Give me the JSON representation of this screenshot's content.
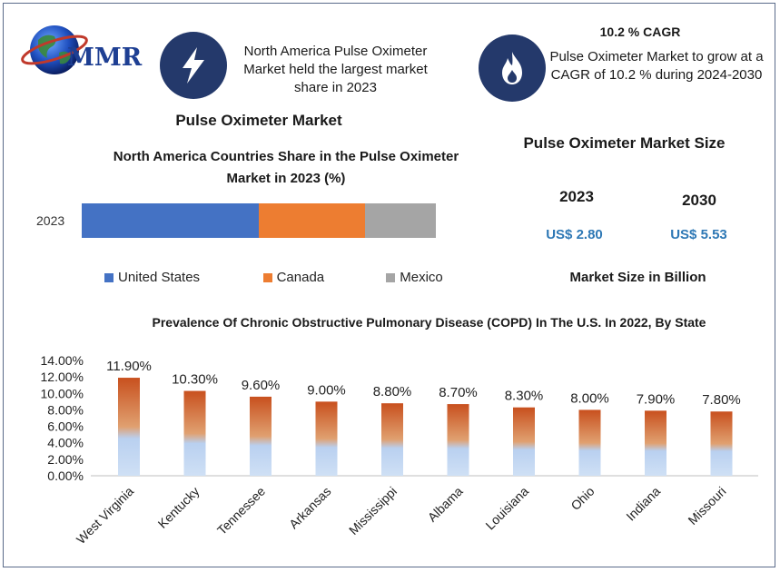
{
  "brand": {
    "logo_text": "MMR"
  },
  "header": {
    "note_left": "North America Pulse Oximeter Market held the largest market share in 2023",
    "cagr_title": "10.2 % CAGR",
    "cagr_text": "Pulse Oximeter Market to grow at a CAGR of 10.2 % during 2024-2030",
    "left_icon": "lightning-bolt-icon",
    "right_icon": "flame-icon"
  },
  "market_title": "Pulse Oximeter Market",
  "colors": {
    "icon_circle": "#24396b",
    "us": "#4472c4",
    "canada": "#ed7d31",
    "mexico": "#a5a5a5",
    "value_text": "#2e78b5",
    "bar_top": "#c8501e",
    "bar_bottom": "#cfe0f5"
  },
  "market_size": {
    "title": "Pulse Oximeter Market Size",
    "year_1": "2023",
    "value_1": "US$ 2.80",
    "year_2": "2030",
    "value_2": "US$ 5.53",
    "footnote": "Market Size in Billion"
  },
  "chart_data": [
    {
      "type": "bar",
      "orientation": "horizontal-stacked",
      "title": "North America Countries Share in the Pulse Oximeter Market in 2023 (%)",
      "categories": [
        "2023"
      ],
      "series": [
        {
          "name": "United States",
          "values": [
            50
          ]
        },
        {
          "name": "Canada",
          "values": [
            30
          ]
        },
        {
          "name": "Mexico",
          "values": [
            20
          ]
        }
      ],
      "legend": "bottom",
      "grid": false
    },
    {
      "type": "bar",
      "title": "Prevalence Of Chronic Obstructive Pulmonary Disease (COPD) In The U.S. In 2022, By State",
      "categories": [
        "West Virginia",
        "Kentucky",
        "Tennessee",
        "Arkansas",
        "Mississippi",
        "Albama",
        "Louisiana",
        "Ohio",
        "Indiana",
        "Missouri"
      ],
      "values": [
        11.9,
        10.3,
        9.6,
        9.0,
        8.8,
        8.7,
        8.3,
        8.0,
        7.9,
        7.8
      ],
      "data_labels": [
        "11.90%",
        "10.30%",
        "9.60%",
        "9.00%",
        "8.80%",
        "8.70%",
        "8.30%",
        "8.00%",
        "7.90%",
        "7.80%"
      ],
      "ylim": [
        0,
        14
      ],
      "yticks": [
        "0.00%",
        "2.00%",
        "4.00%",
        "6.00%",
        "8.00%",
        "10.00%",
        "12.00%",
        "14.00%"
      ],
      "grid": false
    }
  ]
}
